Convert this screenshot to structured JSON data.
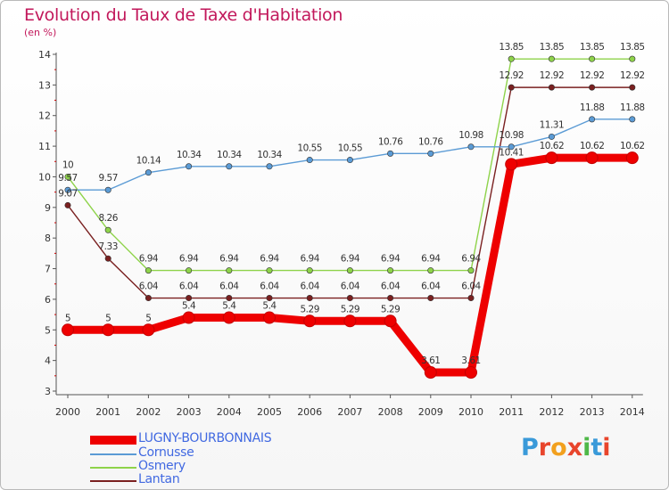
{
  "header": {
    "title": "Evolution du Taux de Taxe d'Habitation",
    "subtitle": "(en %)"
  },
  "logo": {
    "text": "Proxiti"
  },
  "chart_data": {
    "type": "line",
    "title": "Evolution du Taux de Taxe d'Habitation",
    "ylabel": "(en %)",
    "xlabel": "",
    "x": [
      "2000",
      "2001",
      "2002",
      "2003",
      "2004",
      "2005",
      "2006",
      "2007",
      "2008",
      "2009",
      "2010",
      "2011",
      "2012",
      "2013",
      "2014"
    ],
    "ylim": [
      3,
      14
    ],
    "yticks": [
      "3",
      "4",
      "5",
      "6",
      "7",
      "8",
      "9",
      "10",
      "11",
      "12",
      "13",
      "14"
    ],
    "grid": false,
    "legend_position": "bottom-left",
    "series": [
      {
        "name": "LUGNY-BOURBONNAIS",
        "color": "#ee0000",
        "values": [
          5,
          5,
          5,
          5.4,
          5.4,
          5.4,
          5.29,
          5.29,
          5.29,
          3.61,
          3.61,
          10.41,
          10.62,
          10.62,
          10.62
        ],
        "labels": [
          "5",
          "5",
          "5",
          "5.4",
          "5.4",
          "5.4",
          "5.29",
          "5.29",
          "5.29",
          "3.61",
          "3.61",
          "10.41",
          "10.62",
          "10.62",
          "10.62"
        ]
      },
      {
        "name": "Cornusse",
        "color": "#5b9bd5",
        "values": [
          9.57,
          9.57,
          10.14,
          10.34,
          10.34,
          10.34,
          10.55,
          10.55,
          10.76,
          10.76,
          10.98,
          10.98,
          11.31,
          11.88,
          11.88
        ],
        "labels": [
          "9.57",
          "9.57",
          "10.14",
          "10.34",
          "10.34",
          "10.34",
          "10.55",
          "10.55",
          "10.76",
          "10.76",
          "10.98",
          "10.98",
          "11.31",
          "11.88",
          "11.88"
        ]
      },
      {
        "name": "Osmery",
        "color": "#8ed34a",
        "values": [
          10,
          8.26,
          6.94,
          6.94,
          6.94,
          6.94,
          6.94,
          6.94,
          6.94,
          6.94,
          6.94,
          13.85,
          13.85,
          13.85,
          13.85
        ],
        "labels": [
          "10",
          "8.26",
          "6.94",
          "6.94",
          "6.94",
          "6.94",
          "6.94",
          "6.94",
          "6.94",
          "6.94",
          "6.94",
          "13.85",
          "13.85",
          "13.85",
          "13.85"
        ]
      },
      {
        "name": "Lantan",
        "color": "#7a2020",
        "values": [
          9.07,
          7.33,
          6.04,
          6.04,
          6.04,
          6.04,
          6.04,
          6.04,
          6.04,
          6.04,
          6.04,
          12.92,
          12.92,
          12.92,
          12.92
        ],
        "labels": [
          "9.07",
          "7.33",
          "6.04",
          "6.04",
          "6.04",
          "6.04",
          "6.04",
          "6.04",
          "6.04",
          "6.04",
          "6.04",
          "12.92",
          "12.92",
          "12.92",
          "12.92"
        ]
      }
    ]
  }
}
